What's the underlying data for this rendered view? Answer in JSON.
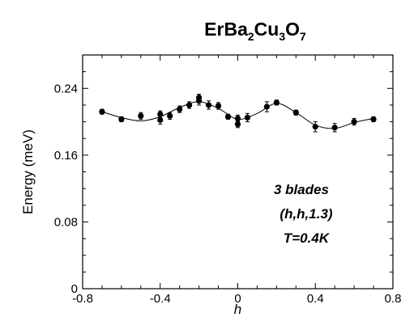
{
  "chart_data": {
    "type": "scatter",
    "title": {
      "parts": [
        {
          "text": "ErBa",
          "sub": false
        },
        {
          "text": "2",
          "sub": true
        },
        {
          "text": "Cu",
          "sub": false
        },
        {
          "text": "3",
          "sub": true
        },
        {
          "text": "O",
          "sub": false
        },
        {
          "text": "7",
          "sub": true
        }
      ]
    },
    "xlabel": "h",
    "ylabel": "Energy (meV)",
    "xlim": [
      -0.8,
      0.8
    ],
    "ylim": [
      0,
      0.28
    ],
    "x_ticks": [
      -0.8,
      -0.4,
      0,
      0.4,
      0.8
    ],
    "x_tick_labels": [
      "-0.8",
      "-0.4",
      "0",
      "0.4",
      "0.8"
    ],
    "y_ticks": [
      0,
      0.08,
      0.16,
      0.24
    ],
    "y_tick_labels": [
      "0",
      "0.08",
      "0.16",
      "0.24"
    ],
    "grid": false,
    "annotations": [
      "3 blades",
      "(h,h,1.3)",
      "T=0.4K"
    ],
    "series": [
      {
        "points": [
          {
            "x": -0.7,
            "y": 0.212,
            "err": 0.003
          },
          {
            "x": -0.6,
            "y": 0.203,
            "err": 0.003
          },
          {
            "x": -0.5,
            "y": 0.207,
            "err": 0.004
          },
          {
            "x": -0.4,
            "y": 0.209,
            "err": 0.004
          },
          {
            "x": -0.4,
            "y": 0.202,
            "err": 0.005
          },
          {
            "x": -0.35,
            "y": 0.207,
            "err": 0.004
          },
          {
            "x": -0.3,
            "y": 0.215,
            "err": 0.004
          },
          {
            "x": -0.25,
            "y": 0.22,
            "err": 0.004
          },
          {
            "x": -0.2,
            "y": 0.225,
            "err": 0.005
          },
          {
            "x": -0.2,
            "y": 0.229,
            "err": 0.004
          },
          {
            "x": -0.15,
            "y": 0.22,
            "err": 0.005
          },
          {
            "x": -0.1,
            "y": 0.219,
            "err": 0.004
          },
          {
            "x": -0.05,
            "y": 0.206,
            "err": 0.003
          },
          {
            "x": 0.0,
            "y": 0.204,
            "err": 0.004
          },
          {
            "x": 0.0,
            "y": 0.197,
            "err": 0.004
          },
          {
            "x": 0.05,
            "y": 0.205,
            "err": 0.005
          },
          {
            "x": 0.15,
            "y": 0.218,
            "err": 0.006
          },
          {
            "x": 0.2,
            "y": 0.223,
            "err": 0.003
          },
          {
            "x": 0.3,
            "y": 0.211,
            "err": 0.003
          },
          {
            "x": 0.4,
            "y": 0.194,
            "err": 0.006
          },
          {
            "x": 0.5,
            "y": 0.193,
            "err": 0.005
          },
          {
            "x": 0.6,
            "y": 0.2,
            "err": 0.004
          },
          {
            "x": 0.7,
            "y": 0.203,
            "err": 0.003
          }
        ]
      }
    ],
    "fit_curve": {
      "x": [
        -0.7,
        -0.6,
        -0.5,
        -0.4,
        -0.3,
        -0.2,
        -0.1,
        0.0,
        0.1,
        0.2,
        0.3,
        0.4,
        0.5,
        0.6,
        0.7
      ],
      "y": [
        0.212,
        0.205,
        0.201,
        0.206,
        0.217,
        0.224,
        0.216,
        0.203,
        0.21,
        0.222,
        0.211,
        0.196,
        0.192,
        0.199,
        0.204
      ]
    }
  }
}
